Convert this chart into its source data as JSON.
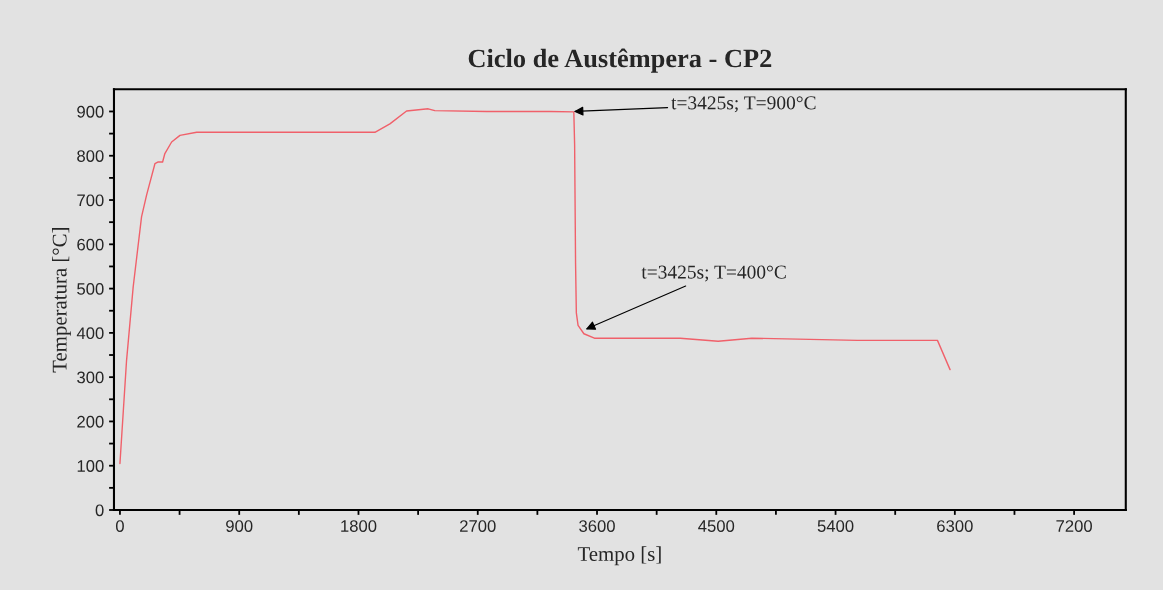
{
  "chart_data": {
    "type": "line",
    "title": "Ciclo de Austêmpera - CP2",
    "xlabel": "Tempo [s]",
    "ylabel": "Temperatura [°C]",
    "series": [
      {
        "color": "#f0606a",
        "x": [
          0,
          50,
          100,
          163,
          201,
          264,
          289,
          322,
          339,
          390,
          453,
          579,
          1000,
          1500,
          1924,
          2037,
          2163,
          2326,
          2376,
          2766,
          3244,
          3425,
          3431,
          3438,
          3444,
          3457,
          3501,
          3580,
          4228,
          4514,
          4768,
          5565,
          6169,
          6264
        ],
        "values": [
          105,
          338,
          504,
          662,
          711,
          782,
          786,
          786,
          805,
          831,
          846,
          853,
          853,
          853,
          853,
          872,
          901,
          906,
          902,
          900,
          900,
          899,
          825,
          559,
          445,
          417,
          398,
          388,
          388,
          381,
          388,
          383,
          383,
          317
        ]
      }
    ],
    "annotations": [
      {
        "text": "t=3425s; T=900°C",
        "x": 3425,
        "y": 900
      },
      {
        "text": "t=3425s; T=400°C",
        "x": 3515,
        "y": 408
      }
    ],
    "xlim": [
      -45,
      7590
    ],
    "ylim": [
      0,
      950
    ],
    "xticks": [
      0,
      {
        "value": 450,
        "label": null
      },
      900,
      {
        "value": 1350,
        "label": null
      },
      1800,
      {
        "value": 2250,
        "label": null
      },
      2700,
      {
        "value": 3150,
        "label": null
      },
      3600,
      {
        "value": 4050,
        "label": null
      },
      4500,
      {
        "value": 4950,
        "label": null
      },
      5400,
      {
        "value": 5850,
        "label": null
      },
      6300,
      {
        "value": 6750,
        "label": null
      },
      7200
    ],
    "yticks": [
      0,
      {
        "value": 50,
        "label": null
      },
      100,
      {
        "value": 150,
        "label": null
      },
      200,
      {
        "value": 250,
        "label": null
      },
      300,
      {
        "value": 350,
        "label": null
      },
      400,
      {
        "value": 450,
        "label": null
      },
      500,
      {
        "value": 550,
        "label": null
      },
      600,
      {
        "value": 650,
        "label": null
      },
      700,
      {
        "value": 750,
        "label": null
      },
      800,
      {
        "value": 850,
        "label": null
      },
      900
    ],
    "legend": false,
    "marker": "none",
    "line_style": "solid"
  }
}
